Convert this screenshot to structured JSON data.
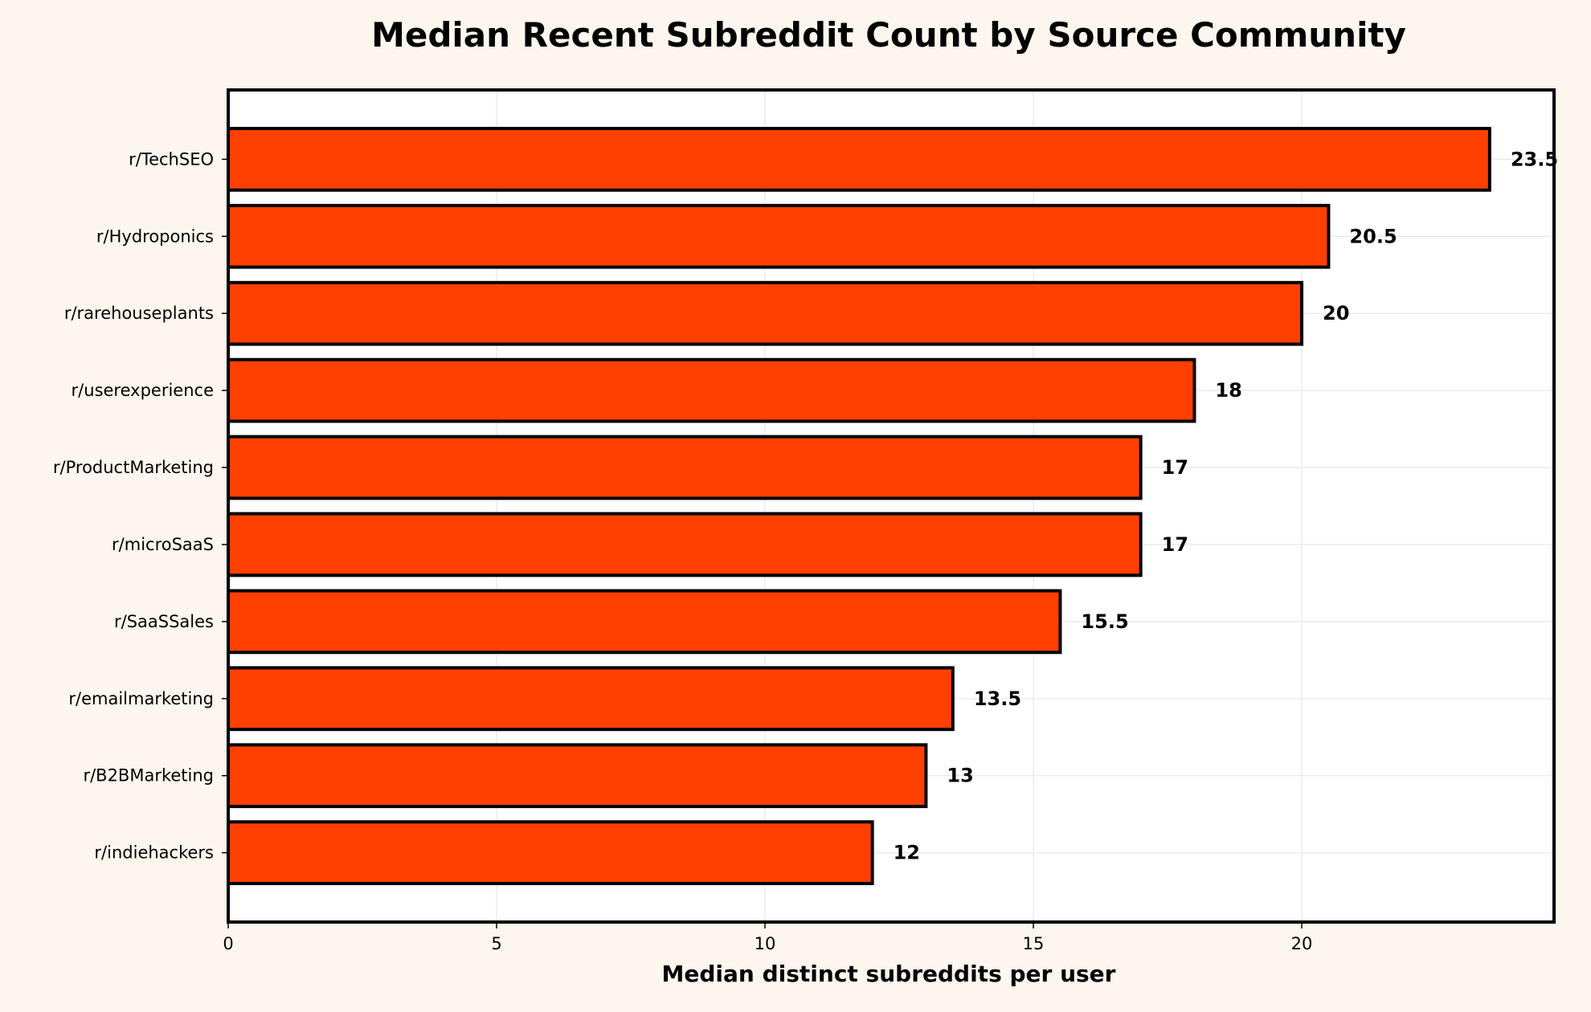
{
  "chart_data": {
    "type": "bar",
    "orientation": "horizontal",
    "title": "Median Recent Subreddit Count by Source Community",
    "xlabel": "Median distinct subreddits per user",
    "ylabel": "",
    "xlim": [
      0,
      24.7
    ],
    "xticks": [
      0,
      5,
      10,
      15,
      20
    ],
    "grid": true,
    "categories": [
      "r/TechSEO",
      "r/Hydroponics",
      "r/rarehouseplants",
      "r/userexperience",
      "r/ProductMarketing",
      "r/microSaaS",
      "r/SaaSSales",
      "r/emailmarketing",
      "r/B2BMarketing",
      "r/indiehackers"
    ],
    "values": [
      23.5,
      20.5,
      20,
      18,
      17,
      17,
      15.5,
      13.5,
      13,
      12
    ],
    "value_labels": [
      "23.5",
      "20.5",
      "20",
      "18",
      "17",
      "17",
      "15.5",
      "13.5",
      "13",
      "12"
    ],
    "colors": {
      "bar": "#ff4000",
      "edge": "#000000",
      "background": "#fdf6ee",
      "plot_background": "#ffffff",
      "grid": "#e6e6e6"
    }
  }
}
